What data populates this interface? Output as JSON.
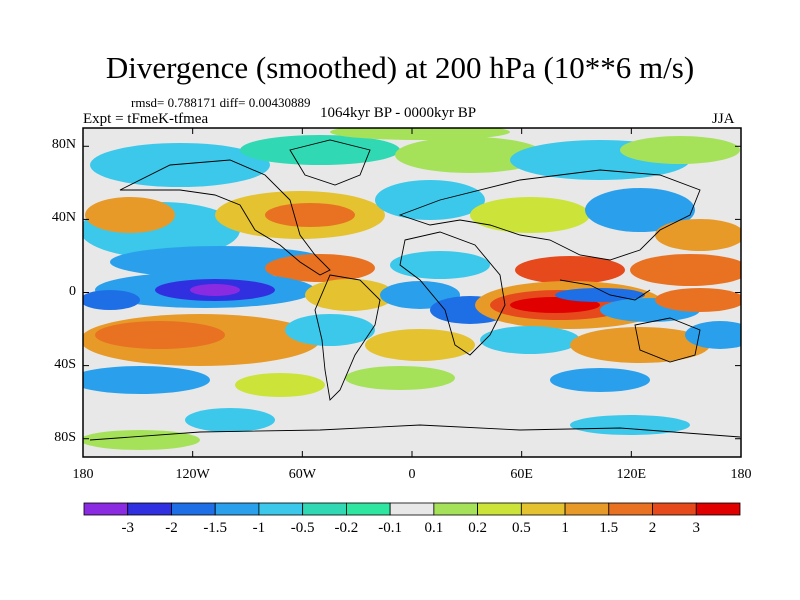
{
  "title": "Divergence (smoothed) at 200 hPa (10**6 m/s)",
  "stats": "rmsd= 0.788171 diff= 0.00430889",
  "experiment": "Expt = tFmeK-tfmea",
  "period": "1064kyr BP - 0000kyr BP",
  "season": "JJA",
  "map": {
    "projection": "cylindrical-equidistant",
    "lon_range": [
      -180,
      180
    ],
    "lat_range": [
      -90,
      90
    ],
    "lat_ticks": [
      {
        "value": 80,
        "label": "80N"
      },
      {
        "value": 40,
        "label": "40N"
      },
      {
        "value": 0,
        "label": "0"
      },
      {
        "value": -40,
        "label": "40S"
      },
      {
        "value": -80,
        "label": "80S"
      }
    ],
    "lon_ticks": [
      {
        "value": -180,
        "label": "180"
      },
      {
        "value": -120,
        "label": "120W"
      },
      {
        "value": -60,
        "label": "60W"
      },
      {
        "value": 0,
        "label": "0"
      },
      {
        "value": 60,
        "label": "60E"
      },
      {
        "value": 120,
        "label": "120E"
      },
      {
        "value": 180,
        "label": "180"
      }
    ]
  },
  "colorbar": {
    "colors": [
      "#8a2be2",
      "#3030e0",
      "#1e6fe6",
      "#2aa0ec",
      "#3cc8ea",
      "#30d8b4",
      "#2ee6a0",
      "#e8e8e8",
      "#a5e25a",
      "#cce33a",
      "#e4c230",
      "#e89a28",
      "#e87222",
      "#e64a1c",
      "#e00000"
    ],
    "labels": [
      "-3",
      "-2",
      "-1.5",
      "-1",
      "-0.5",
      "-0.2",
      "-0.1",
      "0.1",
      "0.2",
      "0.5",
      "1",
      "1.5",
      "2",
      "3"
    ]
  },
  "chart_data": {
    "type": "heatmap",
    "title": "Divergence (smoothed) at 200 hPa (10**6 m/s)",
    "variable": "200 hPa divergence difference (smoothed)",
    "units": "10**6 m/s",
    "levels": [
      -3,
      -2,
      -1.5,
      -1,
      -0.5,
      -0.2,
      -0.1,
      0.1,
      0.2,
      0.5,
      1,
      1.5,
      2,
      3
    ],
    "features": [
      {
        "name": "equatorial-pacific-convergence",
        "lon": [
          -140,
          -100
        ],
        "lat": [
          -5,
          10
        ],
        "level": -2.5
      },
      {
        "name": "indian-ocean-divergence-band",
        "lon": [
          40,
          130
        ],
        "lat": [
          -15,
          10
        ],
        "level": 2.5
      },
      {
        "name": "south-pacific-divergence-band",
        "lon": [
          -170,
          -70
        ],
        "lat": [
          -35,
          -10
        ],
        "level": 1.0
      },
      {
        "name": "west-pacific-divergence",
        "lon": [
          130,
          180
        ],
        "lat": [
          0,
          20
        ],
        "level": 1.5
      }
    ]
  }
}
